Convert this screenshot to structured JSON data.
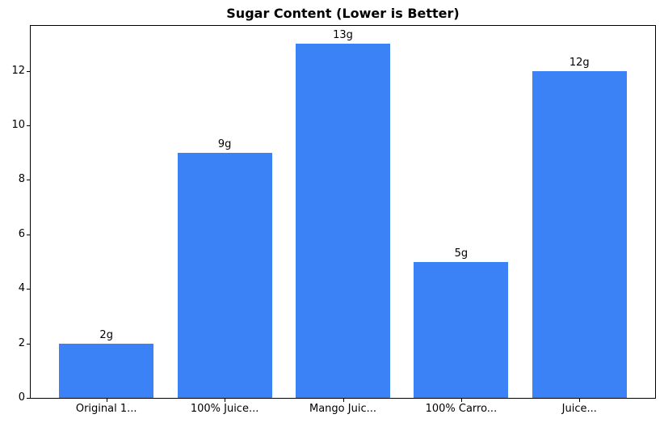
{
  "figure": {
    "background_color": "#ffffff",
    "frame_color": "#000000",
    "text_color": "#000000"
  },
  "chart_data": {
    "type": "bar",
    "title": "Sugar Content (Lower is Better)",
    "categories": [
      "Original 1...",
      "100% Juice...",
      "Mango Juic...",
      "100% Carro...",
      "Juice..."
    ],
    "values": [
      2,
      9,
      13,
      5,
      12
    ],
    "bar_labels": [
      "2g",
      "9g",
      "13g",
      "5g",
      "12g"
    ],
    "bar_color": "#3b82f6",
    "xlabel": "",
    "ylabel": "",
    "ylim": [
      0,
      13.65
    ],
    "yticks": [
      0,
      2,
      4,
      6,
      8,
      10,
      12
    ],
    "grid": false,
    "legend_position": "none"
  }
}
